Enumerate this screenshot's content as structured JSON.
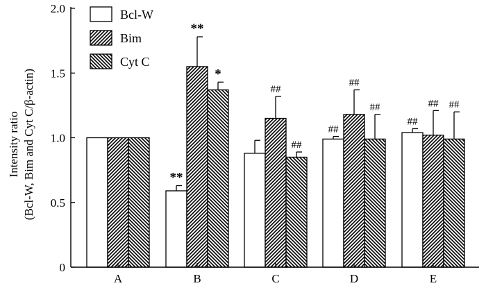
{
  "chart_data": {
    "type": "bar",
    "title": "",
    "xlabel": "",
    "ylabel_line1": "Intensity ratio",
    "ylabel_line2": "(Bcl-W, Bim and Cyt C/β-actin)",
    "ylim": [
      0,
      2.0
    ],
    "yticks": [
      0,
      0.5,
      1.0,
      1.5,
      2.0
    ],
    "ytick_labels": [
      "0",
      "0.5",
      "1.0",
      "1.5",
      "2.0"
    ],
    "categories": [
      "A",
      "B",
      "C",
      "D",
      "E"
    ],
    "legend_position": "top-left",
    "series": [
      {
        "name": "Bcl-W",
        "pattern": "open",
        "values": [
          1.0,
          0.59,
          0.88,
          0.99,
          1.04
        ],
        "errors": [
          0,
          0.04,
          0.1,
          0.02,
          0.03
        ],
        "annotations": [
          "",
          "**",
          "",
          "##",
          "##"
        ]
      },
      {
        "name": "Bim",
        "pattern": "dense-diagonal",
        "values": [
          1.0,
          1.55,
          1.15,
          1.18,
          1.02
        ],
        "errors": [
          0,
          0.23,
          0.17,
          0.19,
          0.19
        ],
        "annotations": [
          "",
          "**",
          "##",
          "##",
          "##"
        ]
      },
      {
        "name": "Cyt C",
        "pattern": "dense-reverse-diagonal",
        "values": [
          1.0,
          1.37,
          0.85,
          0.99,
          0.99
        ],
        "errors": [
          0,
          0.06,
          0.04,
          0.19,
          0.21
        ],
        "annotations": [
          "",
          "*",
          "##",
          "##",
          "##"
        ]
      }
    ]
  }
}
